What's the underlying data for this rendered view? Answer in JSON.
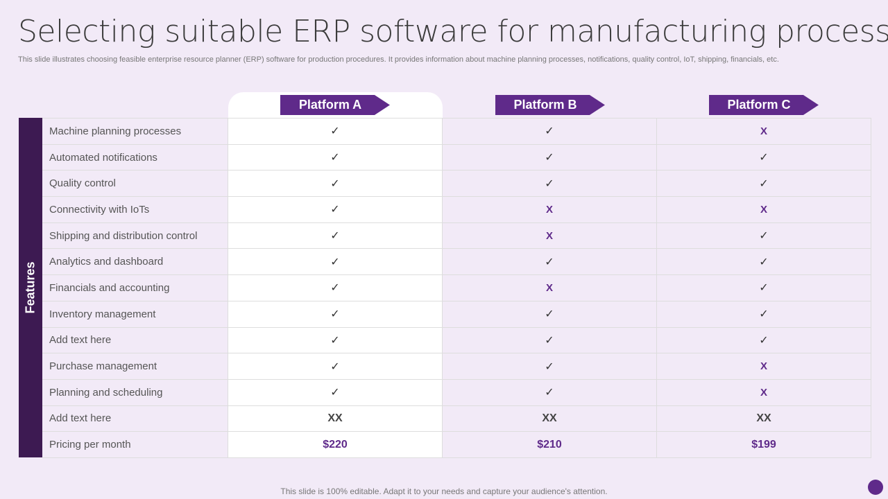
{
  "title": "Selecting suitable ERP software for manufacturing process",
  "subtitle": "This slide illustrates choosing feasible enterprise resource planner (ERP) software for production procedures. It provides information about machine planning processes, notifications, quality control, IoT,  shipping, financials, etc.",
  "features_label": "Features",
  "platforms": [
    "Platform A",
    "Platform B",
    "Platform C"
  ],
  "colors": {
    "accent": "#5f2a8a",
    "dark": "#3d1a52",
    "background": "#f2eaf7"
  },
  "rows": [
    {
      "label": "Machine planning processes",
      "values": [
        "✓",
        "✓",
        "X"
      ]
    },
    {
      "label": "Automated notifications",
      "values": [
        "✓",
        "✓",
        "✓"
      ]
    },
    {
      "label": "Quality control",
      "values": [
        "✓",
        "✓",
        "✓"
      ]
    },
    {
      "label": "Connectivity with IoTs",
      "values": [
        "✓",
        "X",
        "X"
      ]
    },
    {
      "label": "Shipping and distribution control",
      "values": [
        "✓",
        "X",
        "✓"
      ]
    },
    {
      "label": "Analytics and dashboard",
      "values": [
        "✓",
        "✓",
        "✓"
      ]
    },
    {
      "label": "Financials and accounting",
      "values": [
        "✓",
        "X",
        "✓"
      ]
    },
    {
      "label": "Inventory management",
      "values": [
        "✓",
        "✓",
        "✓"
      ]
    },
    {
      "label": "Add text here",
      "values": [
        "✓",
        "✓",
        "✓"
      ]
    },
    {
      "label": "Purchase management",
      "values": [
        "✓",
        "✓",
        "X"
      ]
    },
    {
      "label": "Planning and scheduling",
      "values": [
        "✓",
        "✓",
        "X"
      ]
    },
    {
      "label": "Add text here",
      "values": [
        "XX",
        "XX",
        "XX"
      ]
    },
    {
      "label": "Pricing per month",
      "values": [
        "$220",
        "$210",
        "$199"
      ]
    }
  ],
  "footer": "This slide is 100% editable. Adapt it to your needs and capture your audience's attention."
}
